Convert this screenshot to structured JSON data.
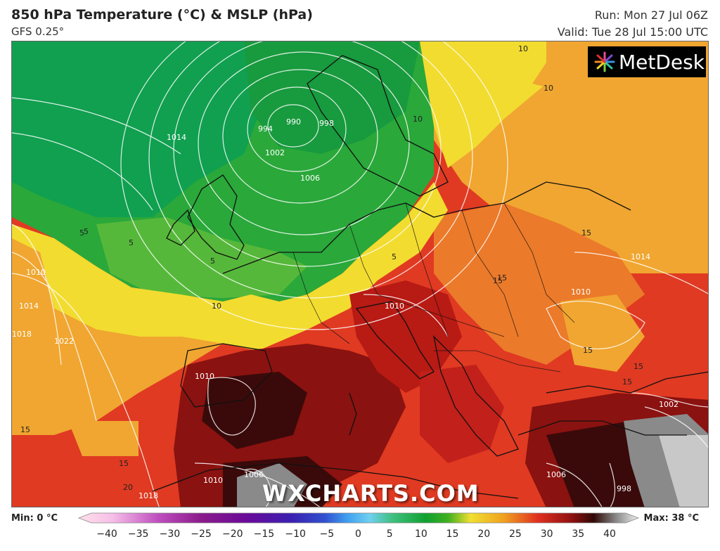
{
  "header": {
    "title": "850 hPa Temperature (°C) & MSLP (hPa)",
    "model": "GFS 0.25°",
    "run": "Run: Mon 27 Jul 06Z",
    "valid": "Valid: Tue 28 Jul 15:00 UTC"
  },
  "logo": {
    "text": "MetDesk"
  },
  "watermark": "WXCHARTS.COM",
  "legend": {
    "min_label": "Min: 0 °C",
    "max_label": "Max: 38 °C",
    "ticks": [
      "−40",
      "−35",
      "−30",
      "−25",
      "−20",
      "−15",
      "−10",
      "−5",
      "0",
      "5",
      "10",
      "15",
      "20",
      "25",
      "30",
      "35",
      "40"
    ],
    "colors": [
      "#ffe0ea",
      "#f7bfe8",
      "#c050c0",
      "#8a1a8a",
      "#6a0a9a",
      "#3a20b0",
      "#3050d0",
      "#40a0f0",
      "#70d0f0",
      "#40c080",
      "#10a030",
      "#40b020",
      "#f0e030",
      "#f0a020",
      "#e03020",
      "#901010",
      "#300808",
      "#888888",
      "#f0f0f0"
    ]
  },
  "isobar_labels": [
    "990",
    "994",
    "998",
    "1002",
    "1006",
    "1010",
    "1014",
    "1018",
    "1022",
    "1010",
    "1014",
    "1006",
    "1010",
    "998",
    "1002",
    "1010",
    "1018",
    "1006",
    "1014",
    "1010"
  ],
  "temp_labels": [
    "5",
    "5",
    "5",
    "10",
    "10",
    "15",
    "15",
    "15",
    "15",
    "15",
    "15",
    "15",
    "10",
    "5",
    "15",
    "20",
    "10",
    "5"
  ],
  "map": {
    "colors": {
      "sea_green": "#0e9a4a",
      "green": "#2aa83a",
      "light_green": "#56b83a",
      "yellow": "#f2dc30",
      "orange": "#f0a630",
      "red_orange": "#ea5a2a",
      "red": "#d6261e",
      "dark_red": "#8a1210",
      "maroon": "#3a0a0a",
      "grey": "#8a8a8a",
      "light_grey": "#c8c8c8"
    }
  }
}
